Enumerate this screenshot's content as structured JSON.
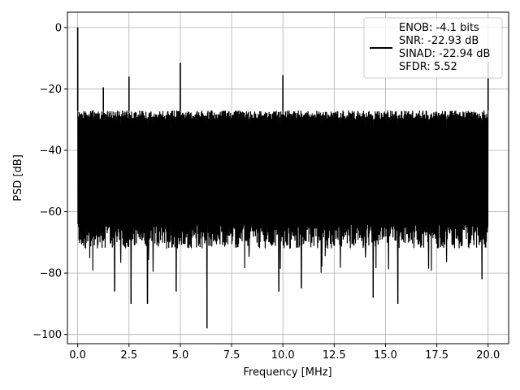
{
  "chart_data": {
    "type": "line",
    "xlabel": "Frequency [MHz]",
    "ylabel": "PSD [dB]",
    "xlim": [
      -0.5,
      21
    ],
    "ylim": [
      -103,
      5
    ],
    "xticks": [
      0.0,
      2.5,
      5.0,
      7.5,
      10.0,
      12.5,
      15.0,
      17.5,
      20.0
    ],
    "xtick_labels": [
      "0.0",
      "2.5",
      "5.0",
      "7.5",
      "10.0",
      "12.5",
      "15.0",
      "17.5",
      "20.0"
    ],
    "yticks": [
      0,
      -20,
      -40,
      -60,
      -80,
      -100
    ],
    "ytick_labels": [
      "0",
      "−20",
      "−40",
      "−60",
      "−80",
      "−100"
    ],
    "grid": true,
    "legend_position": "top-right",
    "series": [
      {
        "color": "#000000",
        "legend_lines": [
          "ENOB: -4.1 bits",
          "SNR: -22.93 dB",
          "SINAD: -22.94 dB",
          "SFDR: 5.52"
        ],
        "noise_floor_top_db": -27,
        "noise_floor_bottom_db": -68,
        "spurs": [
          {
            "x": 0.0,
            "y": 0.0
          },
          {
            "x": 1.25,
            "y": -19.5
          },
          {
            "x": 2.5,
            "y": -16.0
          },
          {
            "x": 5.0,
            "y": -11.5
          },
          {
            "x": 10.0,
            "y": -15.5
          },
          {
            "x": 20.0,
            "y": -11.0
          }
        ],
        "dips": [
          {
            "x": 1.8,
            "y": -86
          },
          {
            "x": 2.6,
            "y": -90
          },
          {
            "x": 3.4,
            "y": -90
          },
          {
            "x": 4.8,
            "y": -86
          },
          {
            "x": 6.3,
            "y": -98
          },
          {
            "x": 9.8,
            "y": -86
          },
          {
            "x": 10.9,
            "y": -85
          },
          {
            "x": 14.4,
            "y": -88
          },
          {
            "x": 15.6,
            "y": -90
          },
          {
            "x": 19.7,
            "y": -82
          }
        ]
      }
    ]
  }
}
